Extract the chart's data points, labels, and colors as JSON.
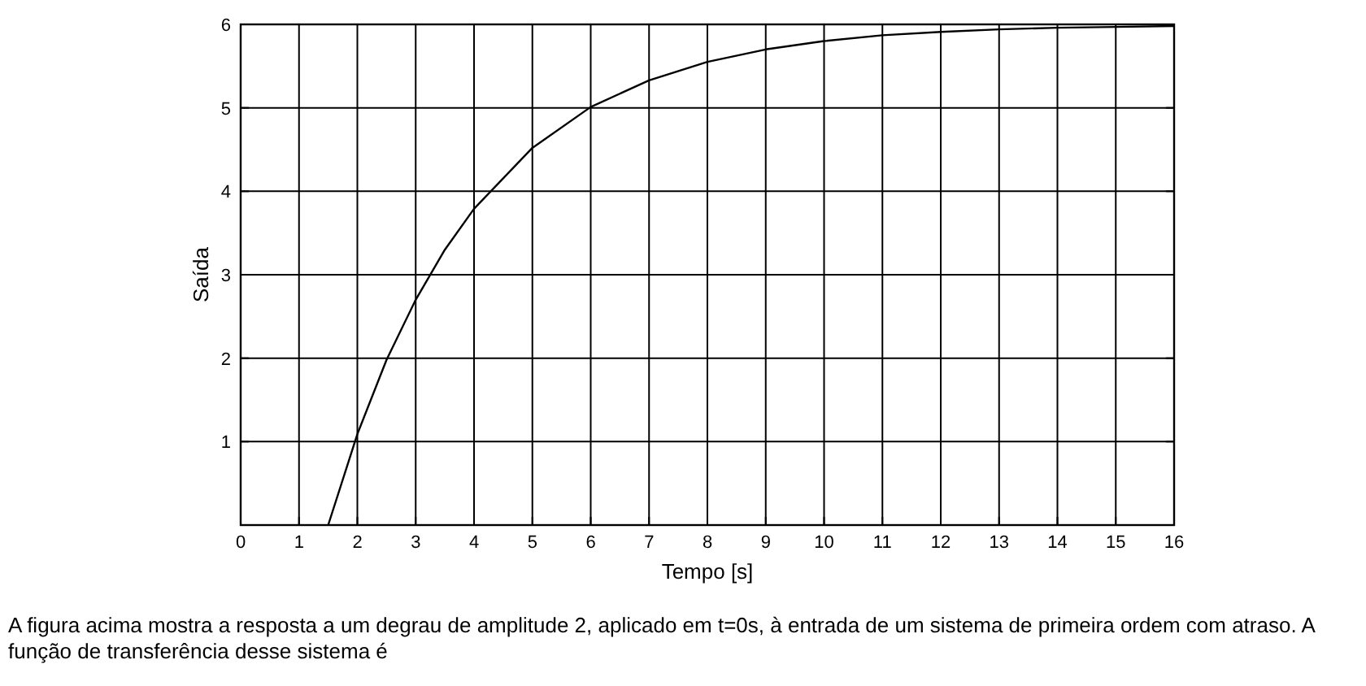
{
  "chart_data": {
    "type": "line",
    "xlabel": "Tempo [s]",
    "ylabel": "Saída",
    "x": [
      1.5,
      2,
      2.5,
      3,
      3.5,
      4,
      5,
      6,
      7,
      8,
      9,
      10,
      11,
      12,
      13,
      14,
      15,
      16
    ],
    "series": [
      {
        "color": "#000000",
        "values": [
          0,
          1.09,
          1.98,
          2.7,
          3.3,
          3.79,
          4.52,
          5.01,
          5.33,
          5.55,
          5.7,
          5.8,
          5.87,
          5.91,
          5.94,
          5.96,
          5.97,
          5.98
        ]
      }
    ],
    "xlim": [
      0,
      16
    ],
    "xticks": [
      0,
      1,
      2,
      3,
      4,
      5,
      6,
      7,
      8,
      9,
      10,
      11,
      12,
      13,
      14,
      15,
      16
    ],
    "ylim": [
      0,
      6
    ],
    "yticks": [
      {
        "value": 0,
        "label": null
      },
      1,
      2,
      3,
      4,
      5,
      6
    ],
    "grid": true,
    "marker": "none",
    "line_style": "solid",
    "annotations": [
      "A figura acima mostra a resposta a um degrau de amplitude 2, aplicado em t=0s, à entrada de um sistema de primeira ordem com atraso. A função de transferência desse sistema é"
    ]
  }
}
